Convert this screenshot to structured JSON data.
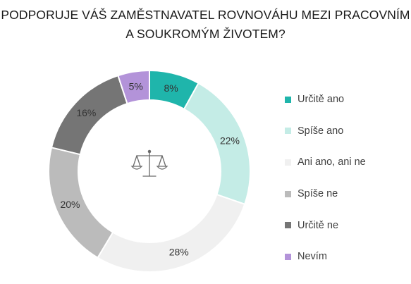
{
  "chart_data": {
    "type": "pie",
    "variant": "donut",
    "title": "PODPORUJE VÁŠ ZAMĚSTNAVATEL ROVNOVÁHU MEZI PRACOVNÍM A SOUKROMÝM ŽIVOTEM?",
    "categories": [
      "Určitě ano",
      "Spíše ano",
      "Ani ano, ani ne",
      "Spíše ne",
      "Určitě ne",
      "Nevím"
    ],
    "values": [
      8,
      22,
      28,
      20,
      16,
      5
    ],
    "data_labels": [
      "8%",
      "22%",
      "28%",
      "20%",
      "16%",
      "5%"
    ],
    "colors": [
      "#1fb5ab",
      "#c4ece6",
      "#f0f0f0",
      "#bbbbbb",
      "#757575",
      "#b393d9"
    ],
    "legend_position": "right",
    "center_icon": "balance-scale-icon"
  }
}
